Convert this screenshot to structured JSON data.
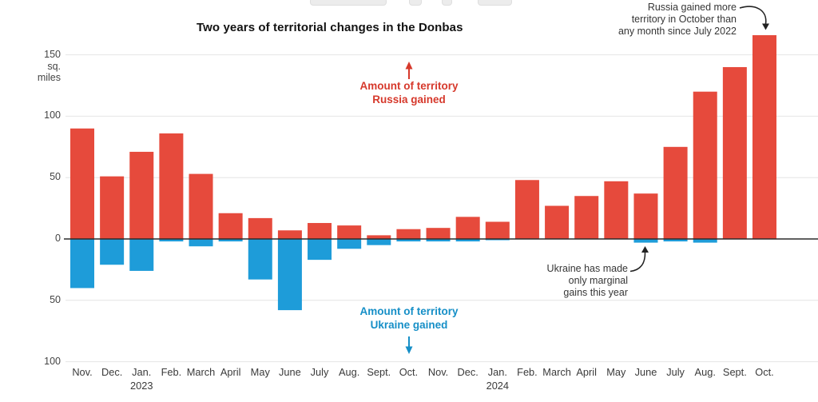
{
  "chart_data": {
    "type": "bar",
    "title": "Two years of territorial changes in the Donbas",
    "xlabel": "",
    "ylabel": "sq. miles",
    "ylim": [
      -100,
      175
    ],
    "grid": true,
    "categories": [
      "Nov. 2022",
      "Dec. 2022",
      "Jan. 2023",
      "Feb. 2023",
      "March 2023",
      "April 2023",
      "May 2023",
      "June 2023",
      "July 2023",
      "Aug. 2023",
      "Sept. 2023",
      "Oct. 2023",
      "Nov. 2023",
      "Dec. 2023",
      "Jan. 2024",
      "Feb. 2024",
      "March 2024",
      "April 2024",
      "May 2024",
      "June 2024",
      "July 2024",
      "Aug. 2024",
      "Sept. 2024",
      "Oct. 2024"
    ],
    "x_tick_labels": [
      "Nov.",
      "Dec.",
      "Jan.",
      "Feb.",
      "March",
      "April",
      "May",
      "June",
      "July",
      "Aug.",
      "Sept.",
      "Oct.",
      "Nov.",
      "Dec.",
      "Jan.",
      "Feb.",
      "March",
      "April",
      "May",
      "June",
      "July",
      "Aug.",
      "Sept.",
      "Oct."
    ],
    "year_labels": [
      {
        "index": 2,
        "label": "2023"
      },
      {
        "index": 14,
        "label": "2024"
      }
    ],
    "series": [
      {
        "name": "Amount of territory Russia gained",
        "color": "#e64a3c",
        "values": [
          90,
          51,
          71,
          86,
          53,
          21,
          17,
          7,
          13,
          11,
          3,
          8,
          9,
          18,
          14,
          48,
          27,
          35,
          47,
          37,
          75,
          120,
          140,
          166
        ]
      },
      {
        "name": "Amount of territory Ukraine gained",
        "color": "#1e9cd9",
        "values": [
          -40,
          -21,
          -26,
          -2,
          -6,
          -2,
          -33,
          -58,
          -17,
          -8,
          -5,
          -2,
          -2,
          -2,
          -1,
          0,
          0,
          0,
          0,
          -3,
          -2,
          -3,
          0,
          0
        ]
      }
    ],
    "y_axis": {
      "tick_values": [
        150,
        100,
        50,
        0,
        -50,
        -100
      ],
      "tick_labels": [
        "150",
        "100",
        "50",
        "0",
        "50",
        "100"
      ],
      "unit_lines": [
        "sq.",
        "miles"
      ]
    }
  },
  "notes": {
    "russia_arrow_label": {
      "line1": "Amount of territory",
      "line2": "Russia gained"
    },
    "ukraine_arrow_label": {
      "line1": "Amount of territory",
      "line2": "Ukraine gained"
    },
    "october_note": {
      "line1": "Russia gained more",
      "line2": "territory in October than",
      "line3": "any month since July 2022"
    },
    "marginal_gains_note": {
      "line1": "Ukraine has made",
      "line2": "only marginal",
      "line3": "gains this year"
    }
  },
  "colors": {
    "russia_bar": "#e64a3c",
    "ukraine_bar": "#1e9cd9",
    "russia_text": "#d6392c",
    "ukraine_text": "#168fc7",
    "axis_line": "#2b2b2b",
    "gridline": "#e4e4e4",
    "note_text": "#363636"
  }
}
